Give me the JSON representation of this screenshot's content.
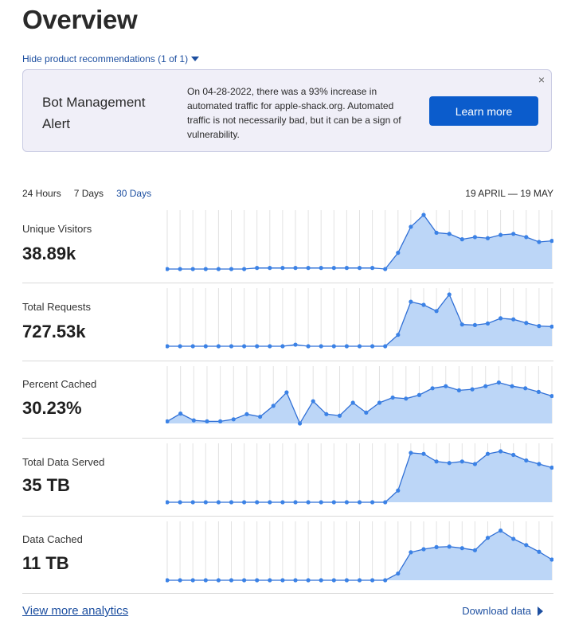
{
  "page": {
    "title": "Overview"
  },
  "recommendations": {
    "toggle_label": "Hide product recommendations (1 of 1)"
  },
  "alert": {
    "title": "Bot Management Alert",
    "body": "On 04-28-2022, there was a 93% increase in automated traffic for apple-shack.org. Automated traffic is not necessarily bad, but it can be a sign of vulnerability.",
    "button_label": "Learn more",
    "close_glyph": "×"
  },
  "time_range": {
    "tabs": [
      {
        "label": "24 Hours",
        "active": false
      },
      {
        "label": "7 Days",
        "active": false
      },
      {
        "label": "30 Days",
        "active": true
      }
    ],
    "date_range": "19 APRIL — 19 MAY"
  },
  "metrics": [
    {
      "label": "Unique Visitors",
      "value": "38.89k",
      "series": [
        0,
        0,
        0,
        0,
        0,
        0,
        0,
        0.02,
        0.02,
        0.02,
        0.02,
        0.02,
        0.02,
        0.02,
        0.02,
        0.02,
        0.02,
        0,
        0.3,
        0.78,
        1,
        0.67,
        0.65,
        0.55,
        0.59,
        0.57,
        0.63,
        0.65,
        0.59,
        0.5,
        0.52
      ]
    },
    {
      "label": "Total Requests",
      "value": "727.53k",
      "series": [
        0,
        0,
        0,
        0,
        0,
        0,
        0,
        0,
        0,
        0,
        0.03,
        0,
        0,
        0,
        0,
        0,
        0,
        0,
        0.22,
        0.86,
        0.8,
        0.68,
        1,
        0.42,
        0.41,
        0.44,
        0.54,
        0.52,
        0.45,
        0.39,
        0.38
      ]
    },
    {
      "label": "Percent Cached",
      "value": "30.23%",
      "series": [
        0.04,
        0.19,
        0.06,
        0.04,
        0.04,
        0.08,
        0.18,
        0.13,
        0.34,
        0.6,
        0,
        0.43,
        0.18,
        0.15,
        0.4,
        0.21,
        0.4,
        0.5,
        0.48,
        0.55,
        0.68,
        0.72,
        0.64,
        0.66,
        0.72,
        0.79,
        0.72,
        0.68,
        0.61,
        0.53
      ]
    },
    {
      "label": "Total Data Served",
      "value": "35 TB",
      "series": [
        0,
        0,
        0,
        0,
        0,
        0,
        0,
        0,
        0,
        0,
        0,
        0,
        0,
        0,
        0,
        0,
        0,
        0,
        0.23,
        0.97,
        0.95,
        0.8,
        0.77,
        0.8,
        0.75,
        0.95,
        1,
        0.93,
        0.82,
        0.75,
        0.68
      ]
    },
    {
      "label": "Data Cached",
      "value": "11 TB",
      "series": [
        0,
        0,
        0,
        0,
        0,
        0,
        0,
        0,
        0,
        0,
        0,
        0,
        0,
        0,
        0,
        0,
        0,
        0,
        0.13,
        0.54,
        0.6,
        0.64,
        0.65,
        0.62,
        0.58,
        0.82,
        0.96,
        0.8,
        0.68,
        0.55,
        0.4
      ]
    }
  ],
  "footer": {
    "view_more_label": "View more analytics",
    "download_label": "Download data"
  },
  "colors": {
    "line": "#2f6fd6",
    "fill": "#bcd6f7",
    "grid": "#e2e2e2",
    "point": "#3b82e6"
  }
}
